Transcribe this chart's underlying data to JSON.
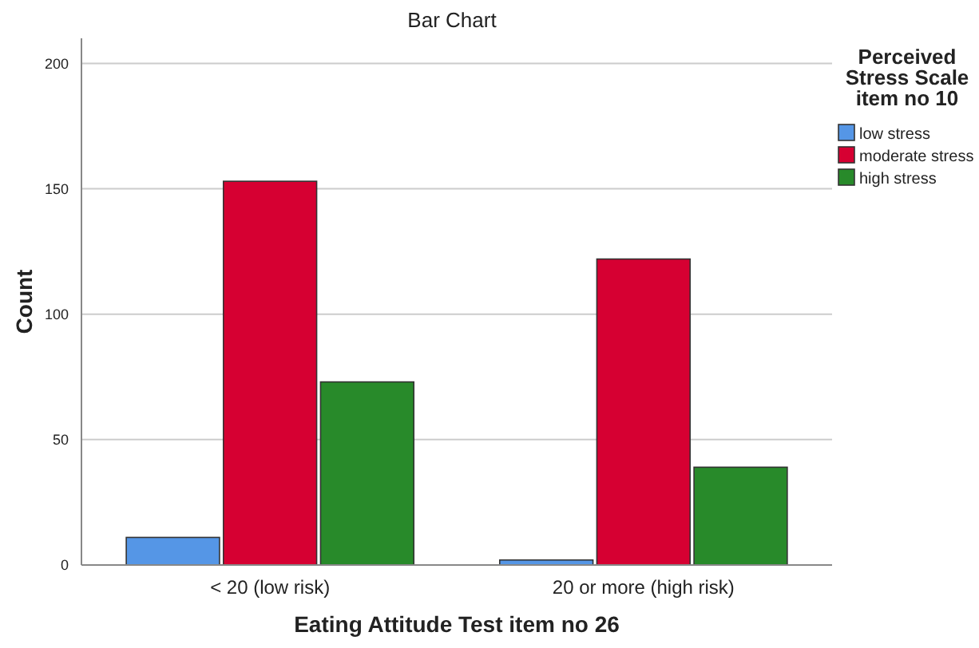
{
  "chart_data": {
    "type": "bar",
    "title": "Bar Chart",
    "xlabel": "Eating Attitude Test item no 26",
    "ylabel": "Count",
    "legend_title": "Perceived Stress Scale item no 10",
    "categories": [
      "< 20 (low risk)",
      "20 or more (high risk)"
    ],
    "series": [
      {
        "name": "low stress",
        "color": "#5596e6",
        "values": [
          11,
          2
        ]
      },
      {
        "name": "moderate stress",
        "color": "#d60032",
        "values": [
          153,
          122
        ]
      },
      {
        "name": "high stress",
        "color": "#288a2a",
        "values": [
          73,
          39
        ]
      }
    ],
    "ylim": [
      0,
      210
    ],
    "yticks": [
      0,
      50,
      100,
      150,
      200
    ],
    "grid": "y",
    "legend": "right"
  }
}
